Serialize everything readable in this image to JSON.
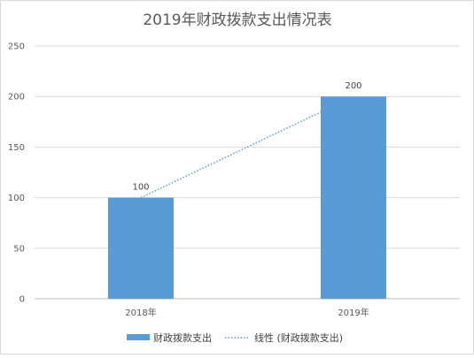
{
  "chart_data": {
    "type": "bar",
    "title": "2019年财政拨款支出情况表",
    "categories": [
      "2018年",
      "2019年"
    ],
    "series": [
      {
        "name": "财政拨款支出",
        "values": [
          100,
          200
        ],
        "color": "#5b9bd5"
      }
    ],
    "trendline": {
      "name": "线性 (财政拨款支出)",
      "type": "linear",
      "style": "dotted",
      "color": "#5b9bd5"
    },
    "data_labels": [
      "100",
      "200"
    ],
    "ylim": [
      0,
      250
    ],
    "yticks": [
      "0",
      "50",
      "100",
      "150",
      "200",
      "250"
    ],
    "grid": true,
    "legend_position": "bottom"
  }
}
